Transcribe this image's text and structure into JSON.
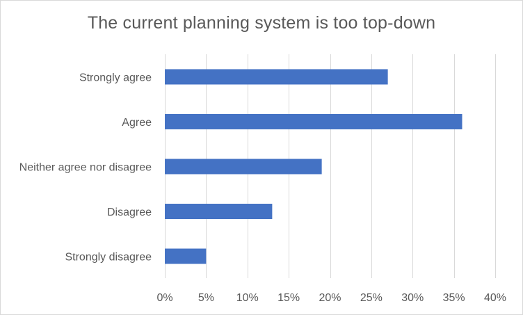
{
  "chart_data": {
    "type": "bar",
    "orientation": "horizontal",
    "title": "The current planning system is too top-down",
    "categories": [
      "Strongly agree",
      "Agree",
      "Neither agree nor disagree",
      "Disagree",
      "Strongly disagree"
    ],
    "values": [
      27,
      36,
      19,
      13,
      5
    ],
    "xlabel": "",
    "ylabel": "",
    "xlim": [
      0,
      40
    ],
    "xticks": [
      0,
      5,
      10,
      15,
      20,
      25,
      30,
      35,
      40
    ],
    "xtick_labels": [
      "0%",
      "5%",
      "10%",
      "15%",
      "20%",
      "25%",
      "30%",
      "35%",
      "40%"
    ],
    "grid": true,
    "legend": "none",
    "bar_color": "#4472c4",
    "grid_color": "#d9d9d9"
  }
}
